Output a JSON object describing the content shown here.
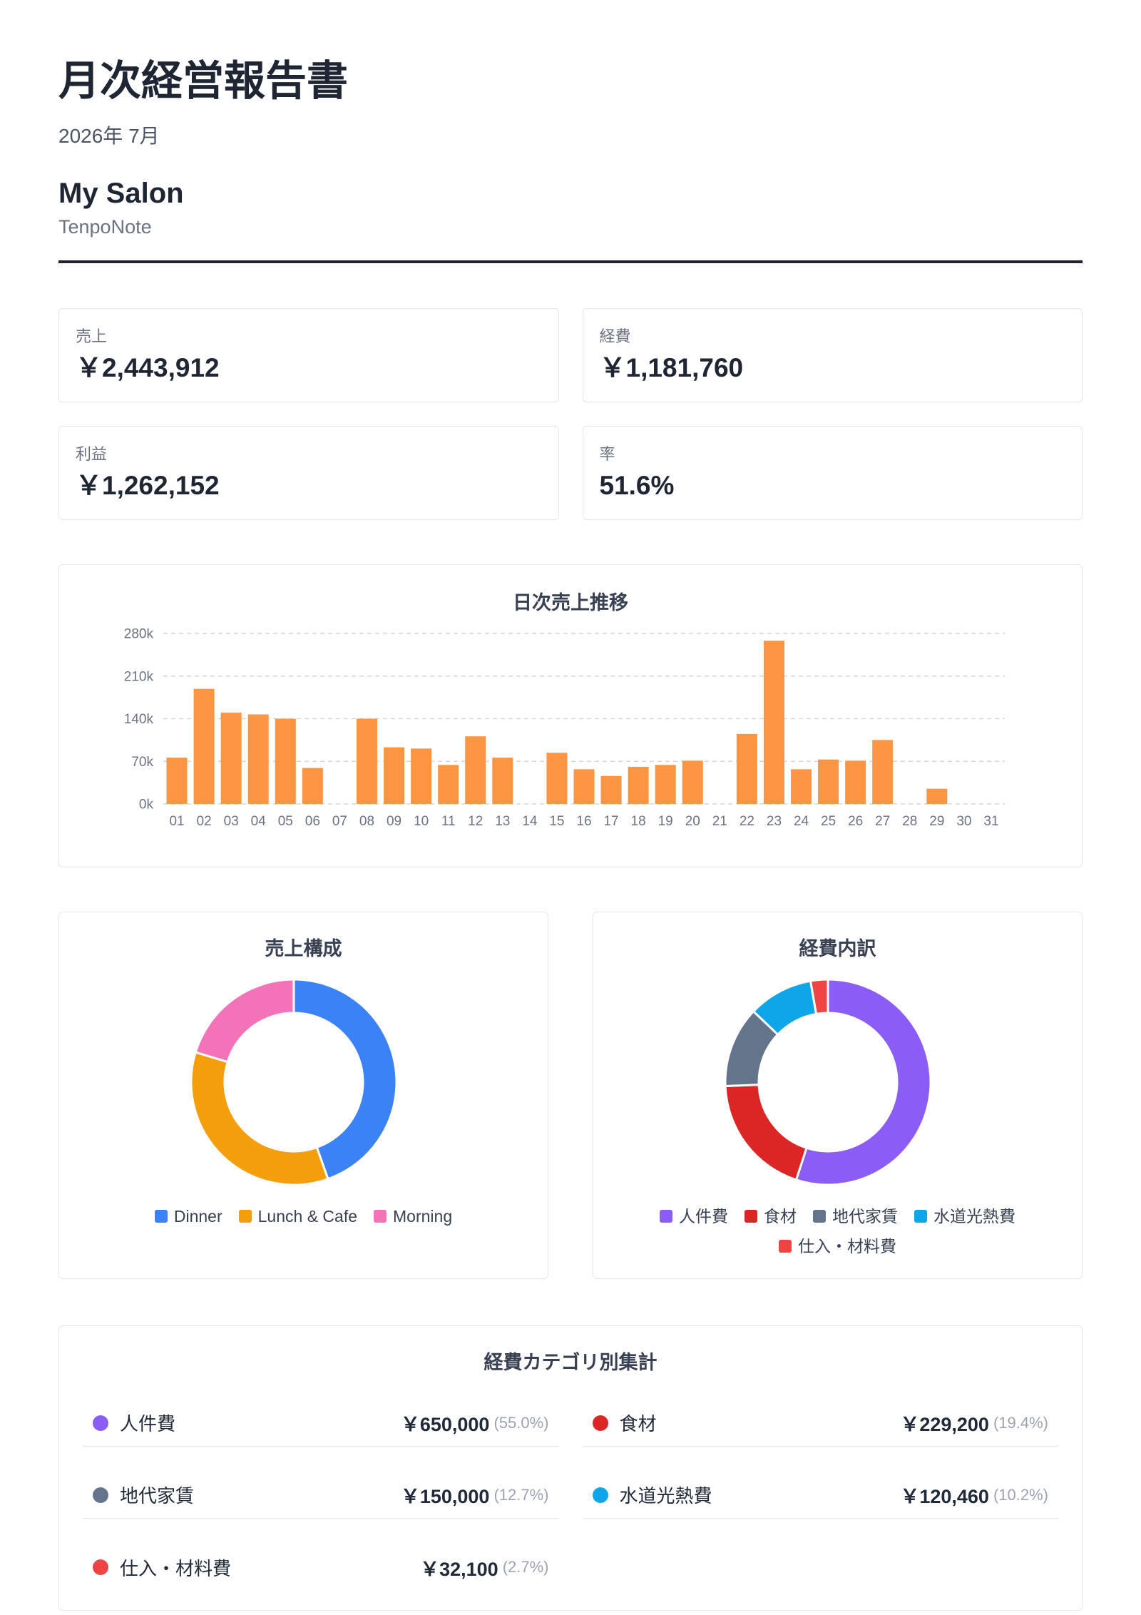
{
  "header": {
    "title": "月次経営報告書",
    "period": "2026年 7月",
    "store_name": "My Salon",
    "brand": "TenpoNote"
  },
  "kpis": [
    {
      "label": "売上",
      "value": "￥2,443,912"
    },
    {
      "label": "経費",
      "value": "￥1,181,760"
    },
    {
      "label": "利益",
      "value": "￥1,262,152"
    },
    {
      "label": "率",
      "value": "51.6%"
    }
  ],
  "chart_data": [
    {
      "type": "bar",
      "title": "日次売上推移",
      "xlabel": "",
      "ylabel": "",
      "categories": [
        "01",
        "02",
        "03",
        "04",
        "05",
        "06",
        "07",
        "08",
        "09",
        "10",
        "11",
        "12",
        "13",
        "14",
        "15",
        "16",
        "17",
        "18",
        "19",
        "20",
        "21",
        "22",
        "23",
        "24",
        "25",
        "26",
        "27",
        "28",
        "29",
        "30",
        "31"
      ],
      "values": [
        76000,
        189000,
        150000,
        147000,
        140000,
        59000,
        0,
        140000,
        93000,
        91000,
        64000,
        111000,
        76000,
        0,
        84000,
        57000,
        46000,
        61000,
        64000,
        71000,
        0,
        115000,
        268000,
        57000,
        73000,
        71000,
        105000,
        0,
        25000,
        0,
        0
      ],
      "ylim": [
        0,
        280000
      ],
      "yticks": [
        0,
        70000,
        140000,
        210000,
        280000
      ],
      "ytick_labels": [
        "0k",
        "70k",
        "140k",
        "210k",
        "280k"
      ],
      "grid": true,
      "color": "#fa9641"
    },
    {
      "type": "pie",
      "donut": true,
      "title": "売上構成",
      "categories": [
        "Dinner",
        "Lunch & Cafe",
        "Morning"
      ],
      "values": [
        1090000,
        858000,
        496000
      ],
      "colors": [
        "#3b82f6",
        "#f59e0b",
        "#f472b6"
      ],
      "legend": "bottom"
    },
    {
      "type": "pie",
      "donut": true,
      "title": "経費内訳",
      "categories": [
        "人件費",
        "食材",
        "地代家賃",
        "水道光熱費",
        "仕入・材料費"
      ],
      "values": [
        650000,
        229200,
        150000,
        120460,
        32100
      ],
      "colors": [
        "#8b5cf6",
        "#dc2626",
        "#64748b",
        "#0ea5e9",
        "#ef4444"
      ],
      "legend": "bottom"
    }
  ],
  "expense_table": {
    "title": "経費カテゴリ別集計",
    "rows": [
      {
        "category": "人件費",
        "amount": "￥650,000",
        "share": "(55.0%)",
        "color": "#8b5cf6"
      },
      {
        "category": "食材",
        "amount": "￥229,200",
        "share": "(19.4%)",
        "color": "#dc2626"
      },
      {
        "category": "地代家賃",
        "amount": "￥150,000",
        "share": "(12.7%)",
        "color": "#64748b"
      },
      {
        "category": "水道光熱費",
        "amount": "￥120,460",
        "share": "(10.2%)",
        "color": "#0ea5e9"
      },
      {
        "category": "仕入・材料費",
        "amount": "￥32,100",
        "share": "(2.7%)",
        "color": "#ef4444"
      }
    ]
  }
}
